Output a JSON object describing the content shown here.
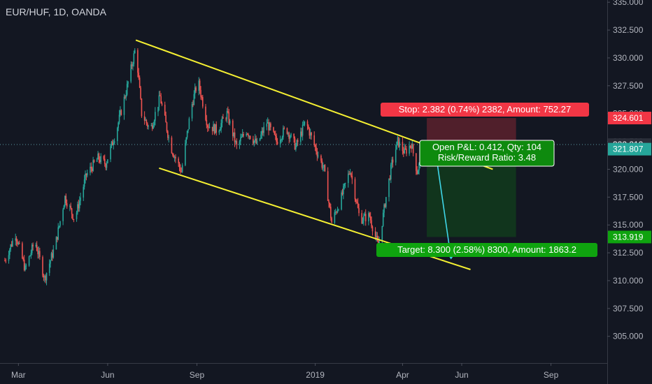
{
  "header": {
    "symbol_label": "EUR/HUF, 1D, OANDA"
  },
  "colors": {
    "background": "#131722",
    "up_candle": "#26a69a",
    "down_candle": "#ef5350",
    "trendline": "#f5f032",
    "projection": "#3fd6e8",
    "stop_label": "#f23645",
    "target_label": "#0fa30f",
    "axis_text": "#b2b5be"
  },
  "chart_data": {
    "type": "candlestick",
    "title": "EUR/HUF, 1D, OANDA",
    "x_tick_labels": [
      "Mar",
      "Jun",
      "Sep",
      "2019",
      "Apr",
      "Jun",
      "Sep"
    ],
    "y_tick_labels": [
      "335.000",
      "332.500",
      "330.000",
      "327.500",
      "325.000",
      "322.500",
      "320.000",
      "317.500",
      "315.000",
      "312.500",
      "310.000",
      "307.500",
      "305.000"
    ],
    "ylim": [
      302.6,
      335.2
    ],
    "grid": false,
    "price_path": [
      {
        "date": "2018-02-15",
        "price": 311.8
      },
      {
        "date": "2018-02-26",
        "price": 314.2
      },
      {
        "date": "2018-03-08",
        "price": 311.0
      },
      {
        "date": "2018-03-18",
        "price": 313.6
      },
      {
        "date": "2018-03-28",
        "price": 310.2
      },
      {
        "date": "2018-04-08",
        "price": 313.2
      },
      {
        "date": "2018-04-18",
        "price": 317.5
      },
      {
        "date": "2018-04-28",
        "price": 315.5
      },
      {
        "date": "2018-05-10",
        "price": 319.5
      },
      {
        "date": "2018-05-22",
        "price": 321.0
      },
      {
        "date": "2018-05-30",
        "price": 320.5
      },
      {
        "date": "2018-06-10",
        "price": 323.5
      },
      {
        "date": "2018-06-20",
        "price": 327.0
      },
      {
        "date": "2018-06-30",
        "price": 331.0
      },
      {
        "date": "2018-07-06",
        "price": 325.0
      },
      {
        "date": "2018-07-15",
        "price": 323.5
      },
      {
        "date": "2018-07-25",
        "price": 326.5
      },
      {
        "date": "2018-08-05",
        "price": 322.0
      },
      {
        "date": "2018-08-16",
        "price": 319.8
      },
      {
        "date": "2018-08-26",
        "price": 325.5
      },
      {
        "date": "2018-09-02",
        "price": 328.0
      },
      {
        "date": "2018-09-12",
        "price": 324.0
      },
      {
        "date": "2018-09-22",
        "price": 323.5
      },
      {
        "date": "2018-10-02",
        "price": 325.0
      },
      {
        "date": "2018-10-12",
        "price": 322.0
      },
      {
        "date": "2018-10-22",
        "price": 323.5
      },
      {
        "date": "2018-11-02",
        "price": 322.2
      },
      {
        "date": "2018-11-12",
        "price": 324.2
      },
      {
        "date": "2018-11-22",
        "price": 322.5
      },
      {
        "date": "2018-12-02",
        "price": 323.7
      },
      {
        "date": "2018-12-12",
        "price": 322.0
      },
      {
        "date": "2018-12-22",
        "price": 324.3
      },
      {
        "date": "2018-12-30",
        "price": 322.4
      },
      {
        "date": "2019-01-10",
        "price": 320.0
      },
      {
        "date": "2019-01-18",
        "price": 315.2
      },
      {
        "date": "2019-01-28",
        "price": 317.5
      },
      {
        "date": "2019-02-06",
        "price": 320.0
      },
      {
        "date": "2019-02-16",
        "price": 315.5
      },
      {
        "date": "2019-02-26",
        "price": 315.8
      },
      {
        "date": "2019-03-07",
        "price": 313.0
      },
      {
        "date": "2019-03-14",
        "price": 317.0
      },
      {
        "date": "2019-03-21",
        "price": 320.5
      },
      {
        "date": "2019-03-27",
        "price": 322.5
      },
      {
        "date": "2019-04-03",
        "price": 321.5
      },
      {
        "date": "2019-04-10",
        "price": 322.3
      },
      {
        "date": "2019-04-16",
        "price": 319.8
      },
      {
        "date": "2019-04-24",
        "price": 322.0
      }
    ],
    "trendlines": [
      {
        "name": "upper-channel",
        "from": {
          "date": "2018-06-30",
          "price": 331.6
        },
        "to": {
          "date": "2019-07-03",
          "price": 320.0
        }
      },
      {
        "name": "lower-channel",
        "from": {
          "date": "2018-07-24",
          "price": 320.1
        },
        "to": {
          "date": "2019-06-10",
          "price": 311.0
        }
      }
    ],
    "projection_path": [
      {
        "date": "2019-04-24",
        "price": 321.8
      },
      {
        "date": "2019-05-04",
        "price": 322.2
      },
      {
        "date": "2019-05-21",
        "price": 312.0
      }
    ],
    "position": {
      "entry": 321.807,
      "stop": 324.601,
      "target": 313.919,
      "current": 322.219,
      "start_date": "2019-04-26",
      "end_date": "2019-07-27"
    },
    "price_labels": [
      {
        "text": "324.601",
        "price": 324.601,
        "color": "#f23645"
      },
      {
        "text": "322.219",
        "price": 322.219,
        "color": "#2a2e39"
      },
      {
        "text": "321.807",
        "price": 321.807,
        "color": "#26a69a"
      },
      {
        "text": "313.919",
        "price": 313.919,
        "color": "#0fa30f"
      }
    ]
  },
  "annotations": {
    "stop_text": "Stop: 2.382 (0.74%) 2382, Amount: 752.27",
    "open_pl_text": "Open P&L: 0.412, Qty: 104",
    "risk_reward_text": "Risk/Reward Ratio: 3.48",
    "target_text": "Target: 8.300 (2.58%) 8300, Amount: 1863.2"
  }
}
